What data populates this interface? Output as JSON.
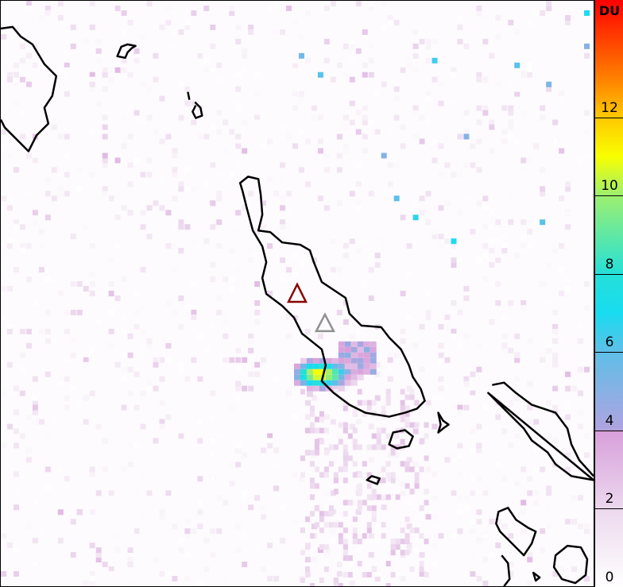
{
  "colorbar": {
    "unit": "DU",
    "min": 0,
    "max": 15,
    "ticks": [
      "0",
      "2",
      "4",
      "6",
      "8",
      "10",
      "12"
    ],
    "stops": [
      {
        "v": 0,
        "c": "#ffffff"
      },
      {
        "v": 2,
        "c": "#ecd8ee"
      },
      {
        "v": 4,
        "c": "#d79fda"
      },
      {
        "v": 4.01,
        "c": "#b0a3e0"
      },
      {
        "v": 6,
        "c": "#5fbfe8"
      },
      {
        "v": 7,
        "c": "#18dcf0"
      },
      {
        "v": 8,
        "c": "#25e0d8"
      },
      {
        "v": 10,
        "c": "#9df070"
      },
      {
        "v": 11,
        "c": "#f8ff00"
      },
      {
        "v": 12,
        "c": "#ffc800"
      },
      {
        "v": 13,
        "c": "#ff8000"
      },
      {
        "v": 15,
        "c": "#ff0000"
      }
    ]
  },
  "markers": [
    {
      "name": "volcano-red",
      "color": "#8b0000"
    },
    {
      "name": "volcano-gray",
      "color": "#909090"
    }
  ],
  "plume": {
    "peak_du": 11,
    "core_color": "#f0ff30"
  }
}
